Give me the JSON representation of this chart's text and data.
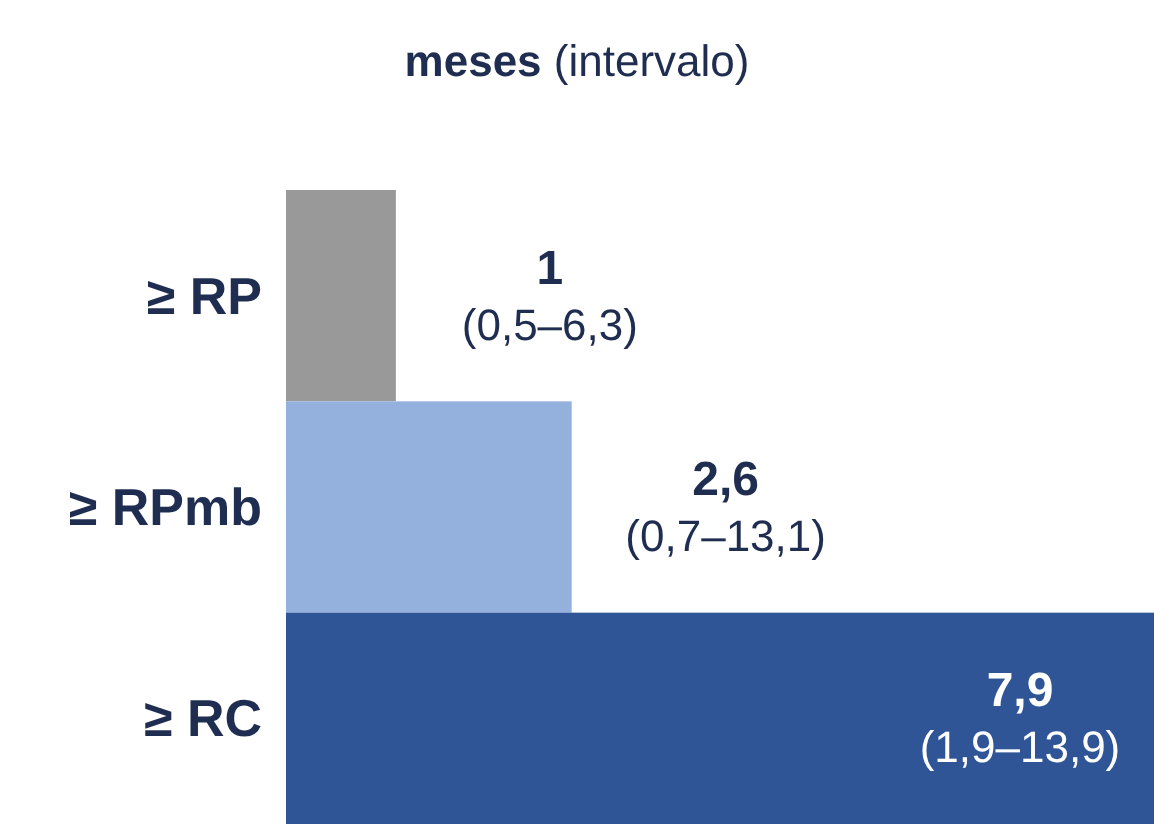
{
  "chart_data": {
    "type": "bar",
    "orientation": "horizontal",
    "title": "meses (intervalo)",
    "categories": [
      "≥ RP",
      "≥ RPmb",
      "≥ RC"
    ],
    "values": [
      1,
      2.6,
      7.9
    ],
    "colors": [
      "#999999",
      "#94b0dc",
      "#2f5597"
    ],
    "value_labels": [
      "1",
      "2,6",
      "7,9"
    ],
    "annotations": [
      {
        "text": "(0,5–6,3)",
        "x": 1,
        "y": "≥ RP"
      },
      {
        "text": "(0,7–13,1)",
        "x": 2.6,
        "y": "≥ RPmb"
      },
      {
        "text": "(1,9–13,9)",
        "x": 7.9,
        "y": "≥ RC"
      }
    ]
  }
}
